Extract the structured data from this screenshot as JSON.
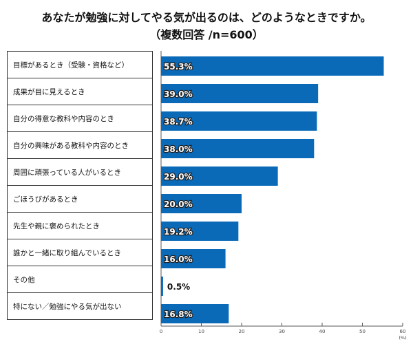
{
  "title": "あなたが勉強に対してやる気が出るのは、どのようなときですか。",
  "subtitle": "（複数回答 /n=600）",
  "chart_data": {
    "type": "bar",
    "orientation": "horizontal",
    "title": "あなたが勉強に対してやる気が出るのは、どのようなときですか。",
    "subtitle": "（複数回答 /n=600）",
    "categories": [
      "目標があるとき（受験・資格など）",
      "成果が目に見えるとき",
      "自分の得意な教科や内容のとき",
      "自分の興味がある教科や内容のとき",
      "周囲に頑張っている人がいるとき",
      "ごほうびがあるとき",
      "先生や親に褒められたとき",
      "誰かと一緒に取り組んでいるとき",
      "その他",
      "特にない／勉強にやる気が出ない"
    ],
    "values": [
      55.3,
      39.0,
      38.7,
      38.0,
      29.0,
      20.0,
      19.2,
      16.0,
      0.5,
      16.8
    ],
    "labels": [
      "55.3%",
      "39.0%",
      "38.7%",
      "38.0%",
      "29.0%",
      "20.0%",
      "19.2%",
      "16.0%",
      "0.5%",
      "16.8%"
    ],
    "xlim": [
      0,
      60
    ],
    "ticks": [
      "0",
      "10",
      "20",
      "30",
      "40",
      "50",
      "60"
    ],
    "unit": "(%)",
    "bar_color": "#0a6ab8",
    "grid": false
  }
}
